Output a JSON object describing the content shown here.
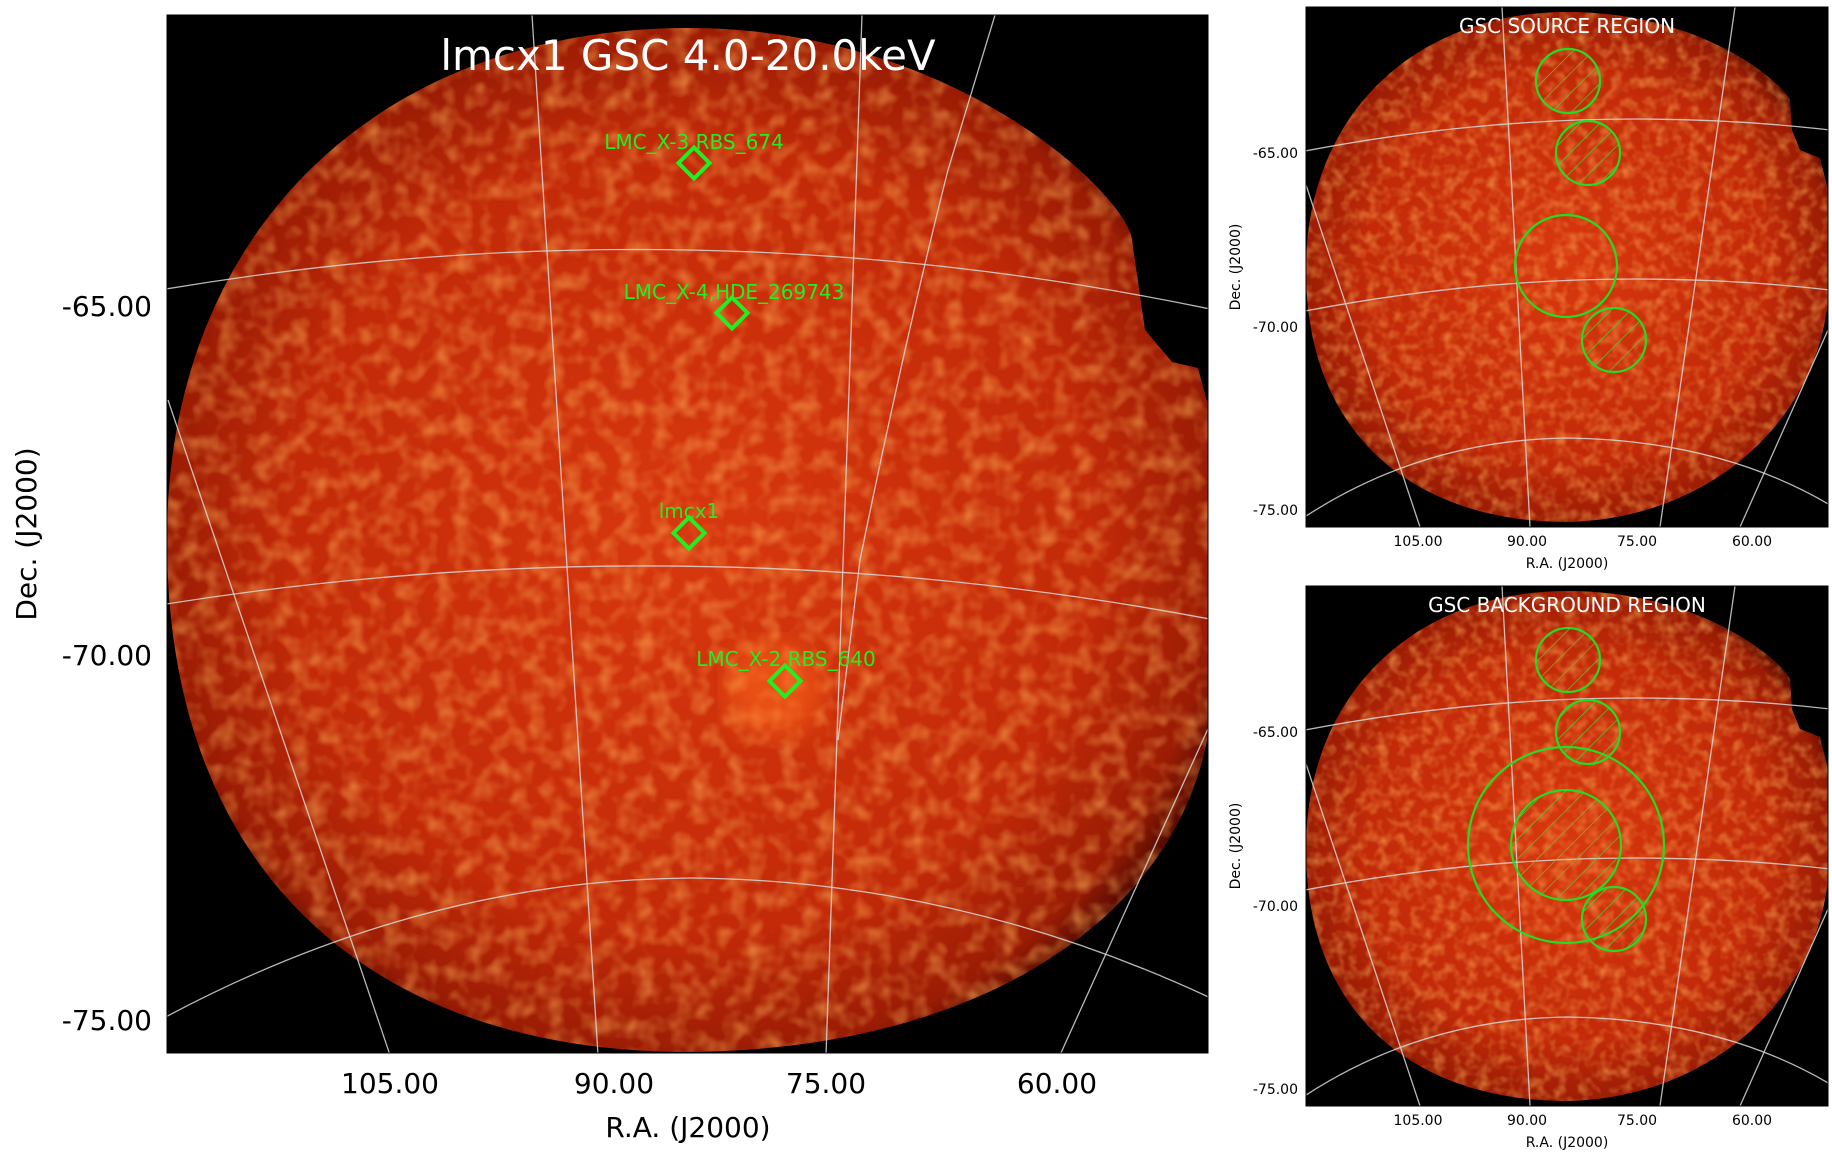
{
  "main_panel": {
    "title": "lmcx1 GSC 4.0-20.0keV",
    "xlabel": "R.A. (J2000)",
    "ylabel": "Dec. (J2000)",
    "y_ticks": [
      "-65.00",
      "-70.00",
      "-75.00"
    ],
    "x_ticks": [
      "105.00",
      "90.00",
      "75.00",
      "60.00"
    ],
    "sources": [
      {
        "label": "LMC_X-3,RBS_674"
      },
      {
        "label": "LMC_X-4,HDE_269743"
      },
      {
        "label": "lmcx1"
      },
      {
        "label": "LMC_X-2,RBS_640"
      }
    ]
  },
  "source_panel": {
    "title": "GSC SOURCE REGION",
    "xlabel": "R.A. (J2000)",
    "ylabel": "Dec. (J2000)",
    "y_ticks": [
      "-65.00",
      "-70.00",
      "-75.00"
    ],
    "x_ticks": [
      "105.00",
      "90.00",
      "75.00",
      "60.00"
    ]
  },
  "background_panel": {
    "title": "GSC BACKGROUND REGION",
    "xlabel": "R.A. (J2000)",
    "ylabel": "Dec. (J2000)",
    "y_ticks": [
      "-65.00",
      "-70.00",
      "-75.00"
    ],
    "x_ticks": [
      "105.00",
      "90.00",
      "75.00",
      "60.00"
    ]
  },
  "colors": {
    "marker": "#22ee22",
    "background": "#000000",
    "image_mid": "#c8280a"
  }
}
